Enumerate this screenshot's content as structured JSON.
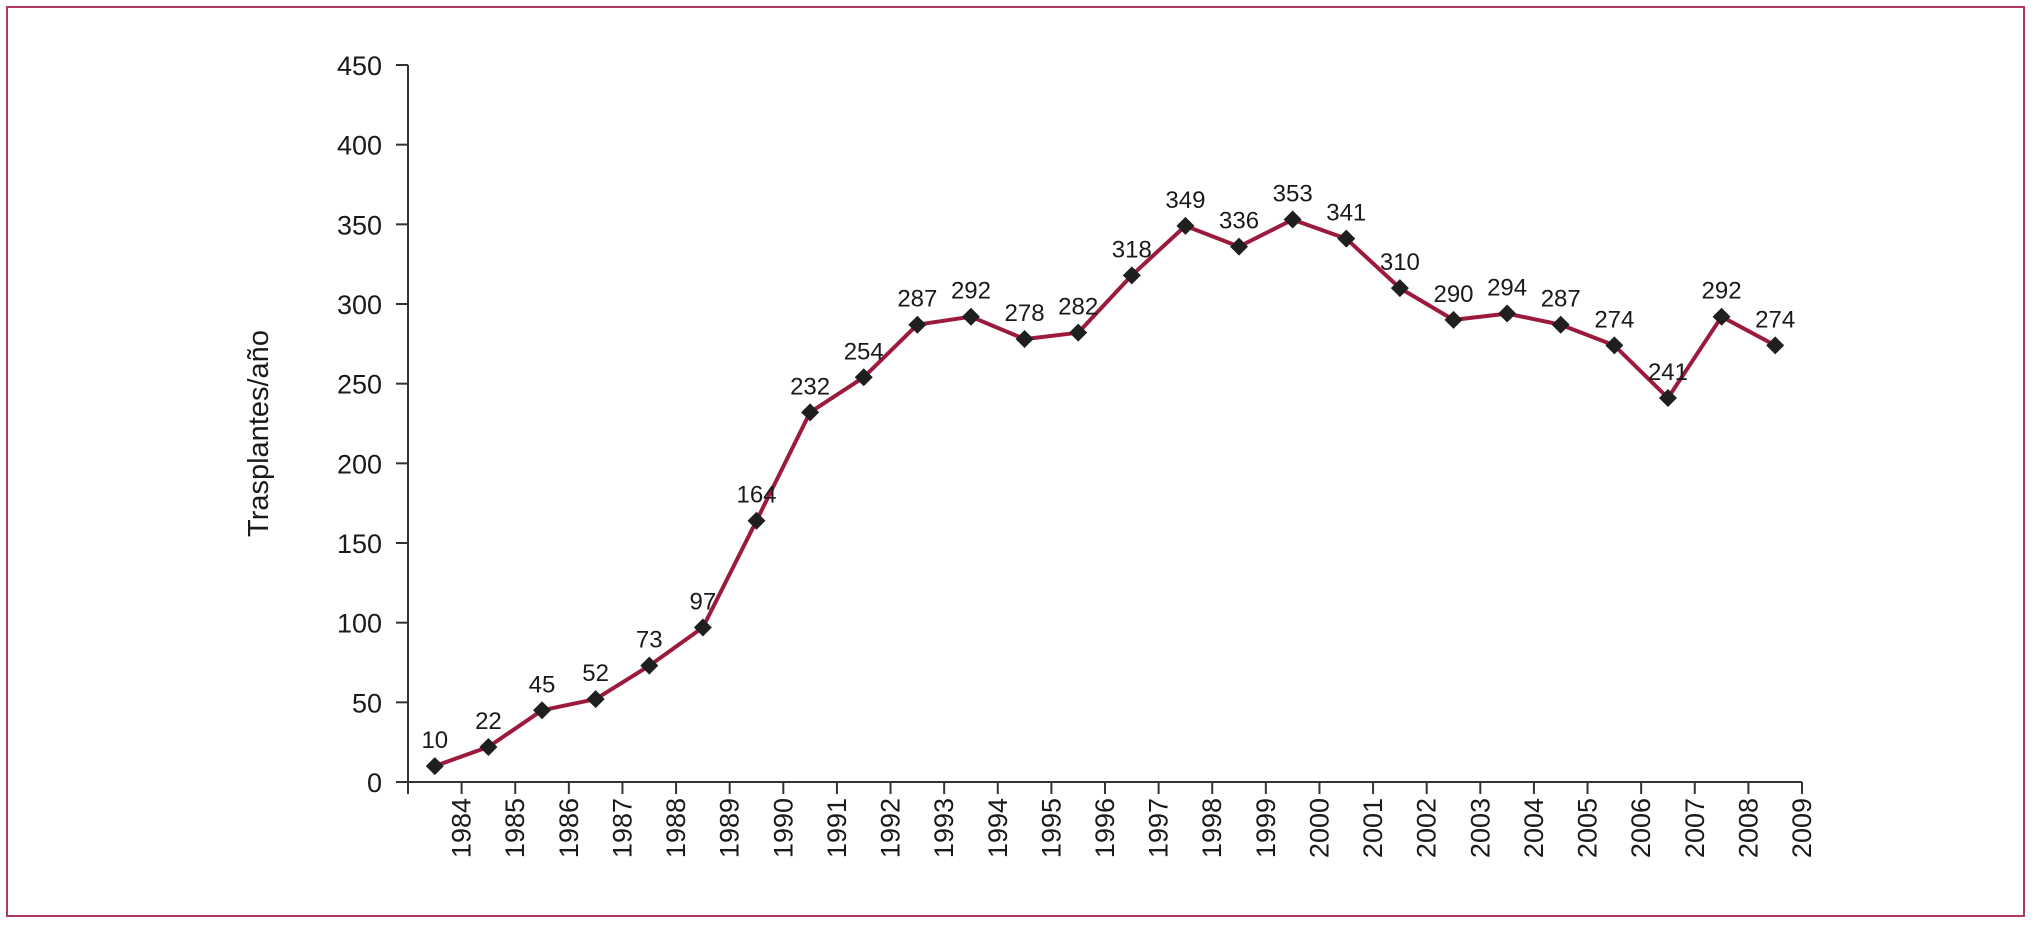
{
  "chart_data": {
    "type": "line",
    "ylabel": "Trasplantes/año",
    "xlabel": "",
    "ylim": [
      0,
      450
    ],
    "yticks": [
      0,
      50,
      100,
      150,
      200,
      250,
      300,
      350,
      400,
      450
    ],
    "categories": [
      "1984",
      "1985",
      "1986",
      "1987",
      "1988",
      "1989",
      "1990",
      "1991",
      "1992",
      "1993",
      "1994",
      "1995",
      "1996",
      "1997",
      "1998",
      "1999",
      "2000",
      "2001",
      "2002",
      "2003",
      "2004",
      "2005",
      "2006",
      "2007",
      "2008",
      "2009"
    ],
    "series": [
      {
        "values": [
          10,
          22,
          45,
          52,
          73,
          97,
          164,
          232,
          254,
          287,
          292,
          278,
          282,
          318,
          349,
          336,
          353,
          341,
          310,
          290,
          294,
          287,
          274,
          241,
          292,
          274
        ],
        "color": "#9c1b3d",
        "marker_color": "#1f1f1f"
      }
    ],
    "grid": false,
    "legend": "none"
  }
}
